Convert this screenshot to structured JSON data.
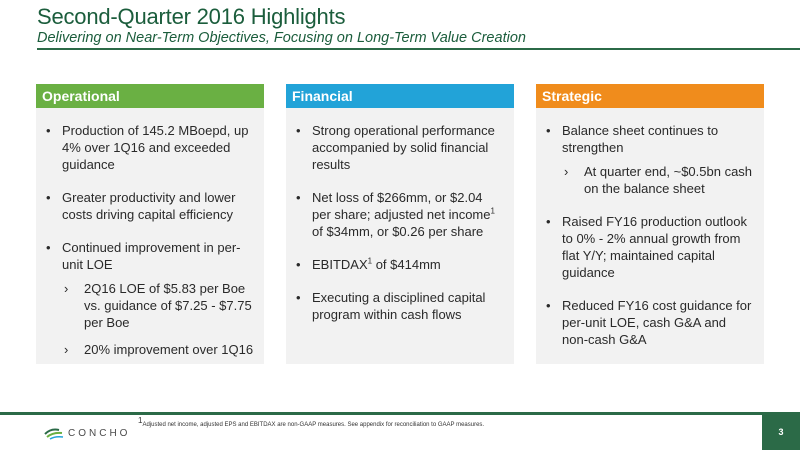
{
  "header": {
    "title": "Second-Quarter 2016 Highlights",
    "subtitle": "Delivering on Near-Term Objectives, Focusing on Long-Term Value Creation"
  },
  "colors": {
    "brand_green": "#2b6a47",
    "operational": "#6ab043",
    "financial": "#22a3d8",
    "strategic": "#f08c1c"
  },
  "columns": {
    "operational": {
      "heading": "Operational",
      "bullets": [
        "Production of 145.2 MBoepd, up 4% over 1Q16 and exceeded guidance",
        "Greater productivity and lower costs driving capital efficiency",
        "Continued improvement in per-unit LOE"
      ],
      "subs": [
        "2Q16 LOE of $5.83 per Boe vs. guidance of $7.25 - $7.75 per Boe",
        "20% improvement over 1Q16"
      ]
    },
    "financial": {
      "heading": "Financial",
      "b1": "Strong operational performance accompanied by solid financial results",
      "b2_pre": "Net loss of $266mm, or $2.04 per share; adjusted net income",
      "b2_sup": "1",
      "b2_post": " of $34mm, or $0.26 per share",
      "b3_pre": "EBITDAX",
      "b3_sup": "1",
      "b3_post": " of $414mm",
      "b4": "Executing a disciplined capital program within cash flows"
    },
    "strategic": {
      "heading": "Strategic",
      "bullets": [
        "Balance sheet continues to strengthen",
        "Raised FY16 production outlook to 0% - 2% annual growth from flat Y/Y; maintained capital guidance",
        "Reduced FY16 cost guidance for per-unit LOE, cash G&A and non-cash G&A"
      ],
      "subs": [
        "At quarter end, ~$0.5bn cash on the balance sheet"
      ]
    }
  },
  "footer": {
    "footnote_sup": "1",
    "footnote": "Adjusted net income, adjusted EPS and EBITDAX are non-GAAP measures.  See appendix for reconciliation to GAAP measures.",
    "logo_text": "CONCHO",
    "logo_icon": "concho-leaf-icon",
    "page_number": "3"
  }
}
